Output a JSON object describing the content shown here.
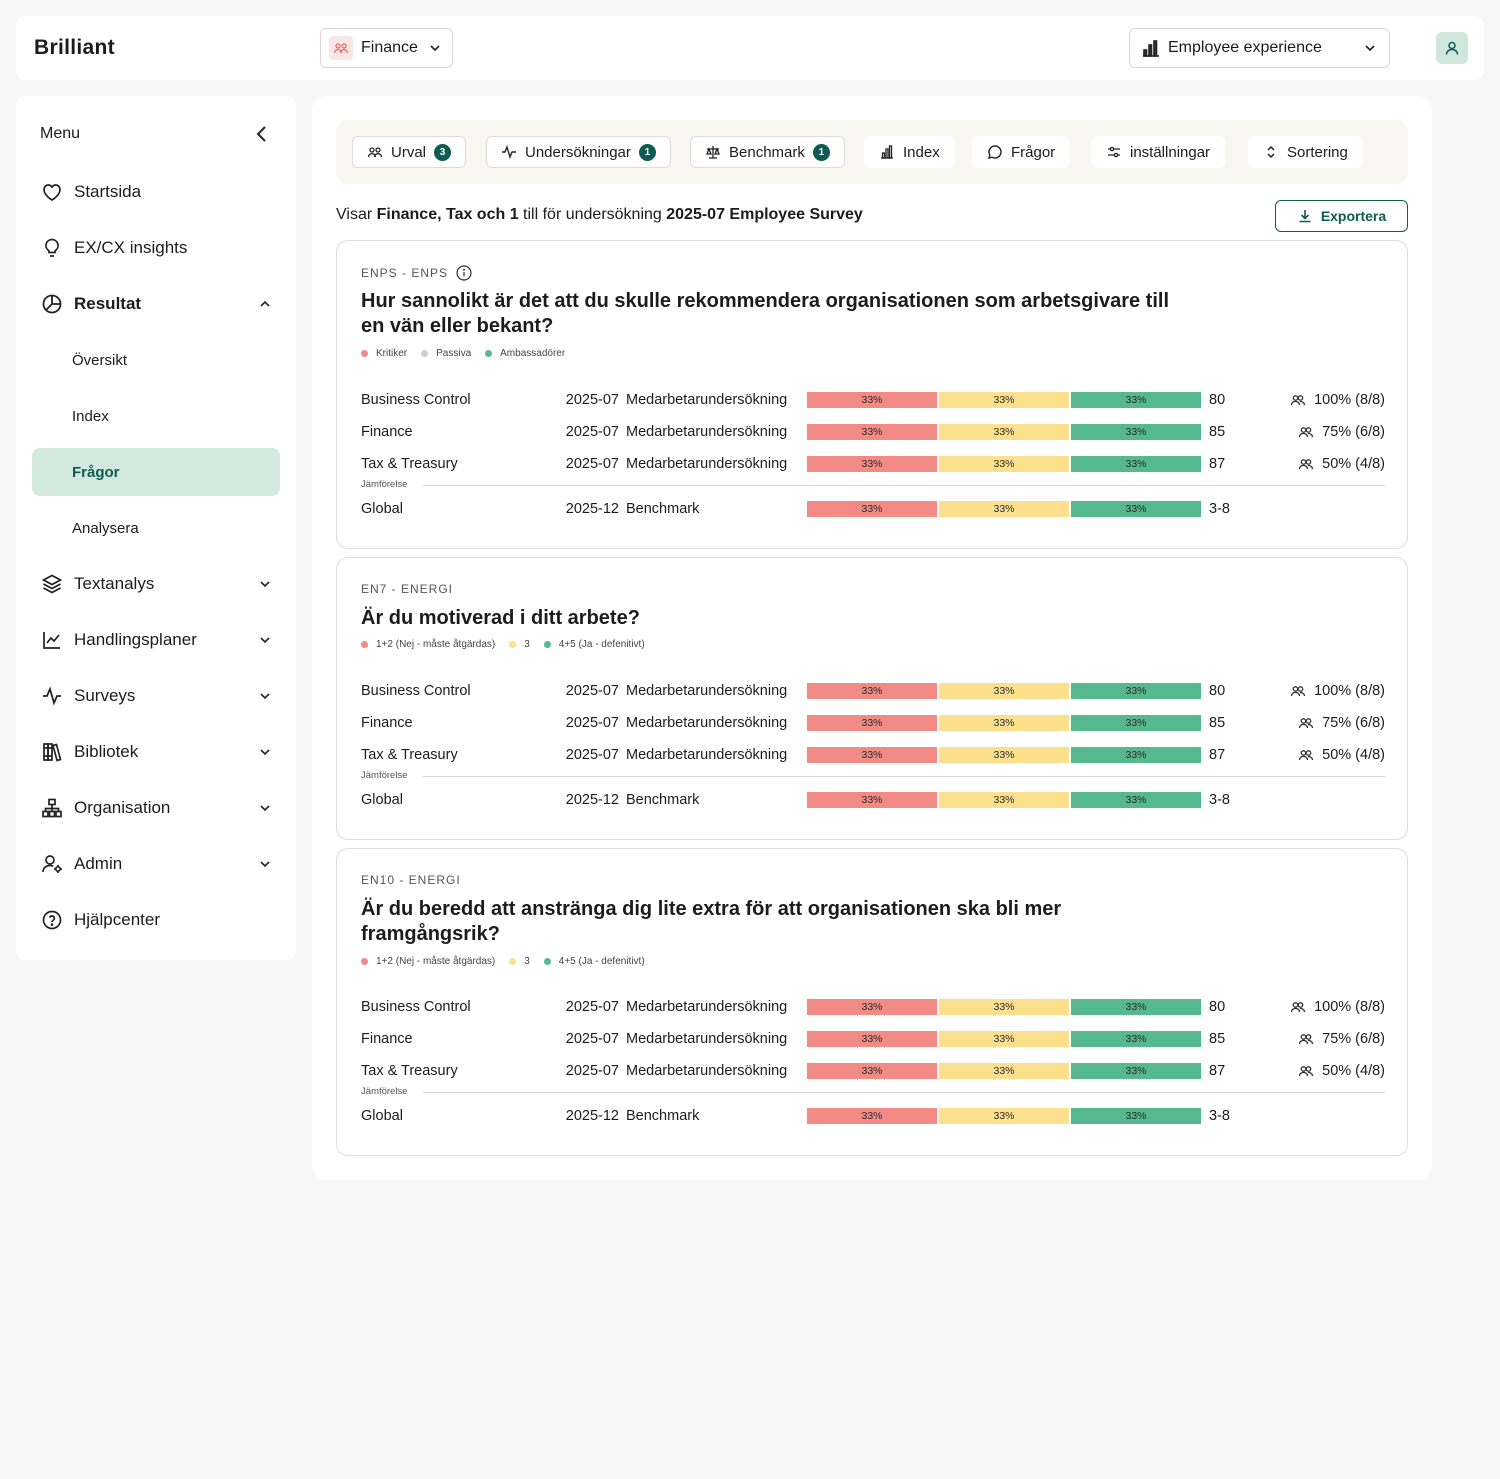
{
  "topbar": {
    "logo": "Brilliant",
    "org_select": "Finance",
    "experience_select": "Employee experience"
  },
  "sidebar": {
    "menu_label": "Menu",
    "items": [
      {
        "label": "Startsida",
        "icon": "heart-icon"
      },
      {
        "label": "EX/CX insights",
        "icon": "lightbulb-icon"
      },
      {
        "label": "Resultat",
        "icon": "pie-chart-icon"
      },
      {
        "label": "Textanalys",
        "icon": "layers-icon"
      },
      {
        "label": "Handlingsplaner",
        "icon": "trend-chart-icon"
      },
      {
        "label": "Surveys",
        "icon": "activity-icon"
      },
      {
        "label": "Bibliotek",
        "icon": "books-icon"
      },
      {
        "label": "Organisation",
        "icon": "org-chart-icon"
      },
      {
        "label": "Admin",
        "icon": "user-gear-icon"
      },
      {
        "label": "Hjälpcenter",
        "icon": "help-circle-icon"
      }
    ],
    "sub_items": [
      "Översikt",
      "Index",
      "Frågor",
      "Analysera"
    ]
  },
  "filters": {
    "urval": {
      "label": "Urval",
      "count": "3"
    },
    "undersokningar": {
      "label": "Undersökningar",
      "count": "1"
    },
    "benchmark": {
      "label": "Benchmark",
      "count": "1"
    },
    "index": {
      "label": "Index"
    },
    "fragor": {
      "label": "Frågor"
    },
    "installningar": {
      "label": "inställningar"
    },
    "sortering": {
      "label": "Sortering"
    }
  },
  "info": {
    "prefix": "Visar",
    "selection": "Finance, Tax och 1",
    "middle": "till för undersökning",
    "survey": "2025-07 Employee Survey"
  },
  "export_label": "Exportera",
  "colors": {
    "red": "#f28b86",
    "yellow": "#fde08d",
    "green": "#55b88e",
    "accent": "#0e5b52"
  },
  "questions": [
    {
      "code": "ENPS - ENPS",
      "title": "Hur sannolikt är det att du skulle rekommendera organisationen som arbetsgivare till en vän eller bekant?",
      "legend": [
        "Kritiker",
        "Passiva",
        "Ambassadörer"
      ],
      "rows": [
        {
          "name": "Business Control",
          "date": "2025-07",
          "survey": "Medarbetarundersökning",
          "segments": [
            "33%",
            "33%",
            "33%"
          ],
          "score": "80",
          "response": "100% (8/8)"
        },
        {
          "name": "Finance",
          "date": "2025-07",
          "survey": "Medarbetarundersökning",
          "segments": [
            "33%",
            "33%",
            "33%"
          ],
          "score": "85",
          "response": "75% (6/8)"
        },
        {
          "name": "Tax & Treasury",
          "date": "2025-07",
          "survey": "Medarbetarundersökning",
          "segments": [
            "33%",
            "33%",
            "33%"
          ],
          "score": "87",
          "response": "50% (4/8)"
        }
      ],
      "comparison_label": "Jämförelse",
      "benchmark": {
        "name": "Global",
        "date": "2025-12",
        "survey": "Benchmark",
        "segments": [
          "33%",
          "33%",
          "33%"
        ],
        "score": "3-8"
      }
    },
    {
      "code": "EN7 - ENERGI",
      "title": "Är du motiverad i ditt arbete?",
      "legend": [
        "1+2 (Nej - måste åtgärdas)",
        "3",
        "4+5 (Ja - defenitivt)"
      ],
      "rows": [
        {
          "name": "Business Control",
          "date": "2025-07",
          "survey": "Medarbetarundersökning",
          "segments": [
            "33%",
            "33%",
            "33%"
          ],
          "score": "80",
          "response": "100% (8/8)"
        },
        {
          "name": "Finance",
          "date": "2025-07",
          "survey": "Medarbetarundersökning",
          "segments": [
            "33%",
            "33%",
            "33%"
          ],
          "score": "85",
          "response": "75% (6/8)"
        },
        {
          "name": "Tax & Treasury",
          "date": "2025-07",
          "survey": "Medarbetarundersökning",
          "segments": [
            "33%",
            "33%",
            "33%"
          ],
          "score": "87",
          "response": "50% (4/8)"
        }
      ],
      "comparison_label": "Jämförelse",
      "benchmark": {
        "name": "Global",
        "date": "2025-12",
        "survey": "Benchmark",
        "segments": [
          "33%",
          "33%",
          "33%"
        ],
        "score": "3-8"
      }
    },
    {
      "code": "EN10 - ENERGI",
      "title": "Är du beredd att anstränga dig lite extra för att organisationen ska bli mer framgångsrik?",
      "legend": [
        "1+2 (Nej - måste åtgärdas)",
        "3",
        "4+5 (Ja - defenitivt)"
      ],
      "rows": [
        {
          "name": "Business Control",
          "date": "2025-07",
          "survey": "Medarbetarundersökning",
          "segments": [
            "33%",
            "33%",
            "33%"
          ],
          "score": "80",
          "response": "100% (8/8)"
        },
        {
          "name": "Finance",
          "date": "2025-07",
          "survey": "Medarbetarundersökning",
          "segments": [
            "33%",
            "33%",
            "33%"
          ],
          "score": "85",
          "response": "75% (6/8)"
        },
        {
          "name": "Tax & Treasury",
          "date": "2025-07",
          "survey": "Medarbetarundersökning",
          "segments": [
            "33%",
            "33%",
            "33%"
          ],
          "score": "87",
          "response": "50% (4/8)"
        }
      ],
      "comparison_label": "Jämförelse",
      "benchmark": {
        "name": "Global",
        "date": "2025-12",
        "survey": "Benchmark",
        "segments": [
          "33%",
          "33%",
          "33%"
        ],
        "score": "3-8"
      }
    }
  ]
}
